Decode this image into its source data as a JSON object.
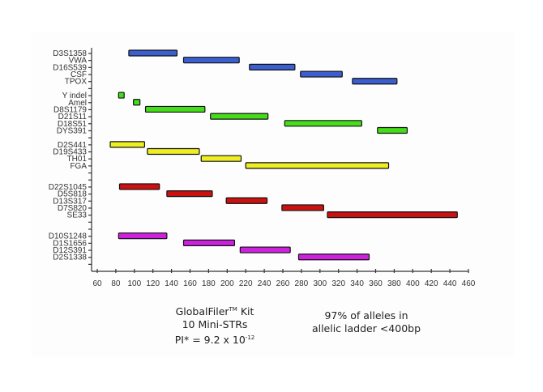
{
  "chart_data": {
    "type": "bar",
    "orientation": "horizontal-range",
    "xlim": [
      60,
      460
    ],
    "xticks": [
      60,
      80,
      100,
      120,
      140,
      160,
      180,
      200,
      220,
      240,
      260,
      280,
      300,
      320,
      340,
      360,
      380,
      400,
      420,
      440,
      460
    ],
    "grid": false,
    "colors": {
      "blue": "#3b5fd0",
      "green": "#44dd1a",
      "yellow": "#eeee22",
      "red": "#cc1111",
      "magenta": "#cc22dd"
    },
    "loci": [
      {
        "name": "D3S1358",
        "row": 0,
        "start": 94,
        "end": 146,
        "color": "blue"
      },
      {
        "name": "VWA",
        "row": 1,
        "start": 153,
        "end": 213,
        "color": "blue"
      },
      {
        "name": "D16S539",
        "row": 2,
        "start": 224,
        "end": 273,
        "color": "blue"
      },
      {
        "name": "CSF",
        "row": 3,
        "start": 279,
        "end": 324,
        "color": "blue"
      },
      {
        "name": "TPOX",
        "row": 4,
        "start": 335,
        "end": 383,
        "color": "blue"
      },
      {
        "name": "Y indel",
        "row": 6,
        "start": 83,
        "end": 89,
        "color": "green"
      },
      {
        "name": "Amel",
        "row": 7,
        "start": 99,
        "end": 106,
        "color": "green"
      },
      {
        "name": "D8S1179",
        "row": 8,
        "start": 112,
        "end": 176,
        "color": "green"
      },
      {
        "name": "D21S11",
        "row": 9,
        "start": 182,
        "end": 244,
        "color": "green"
      },
      {
        "name": "D18S51",
        "row": 10,
        "start": 262,
        "end": 345,
        "color": "green"
      },
      {
        "name": "DYS391",
        "row": 11,
        "start": 362,
        "end": 394,
        "color": "green"
      },
      {
        "name": "D2S441",
        "row": 13,
        "start": 74,
        "end": 111,
        "color": "yellow"
      },
      {
        "name": "D19S433",
        "row": 14,
        "start": 114,
        "end": 170,
        "color": "yellow"
      },
      {
        "name": "TH01",
        "row": 15,
        "start": 172,
        "end": 215,
        "color": "yellow"
      },
      {
        "name": "FGA",
        "row": 16,
        "start": 220,
        "end": 374,
        "color": "yellow"
      },
      {
        "name": "D22S1045",
        "row": 19,
        "start": 84,
        "end": 127,
        "color": "red"
      },
      {
        "name": "D5S818",
        "row": 20,
        "start": 135,
        "end": 184,
        "color": "red"
      },
      {
        "name": "D13S317",
        "row": 21,
        "start": 199,
        "end": 243,
        "color": "red"
      },
      {
        "name": "D7S820",
        "row": 22,
        "start": 259,
        "end": 304,
        "color": "red"
      },
      {
        "name": "SE33",
        "row": 23,
        "start": 308,
        "end": 448,
        "color": "red"
      },
      {
        "name": "D10S1248",
        "row": 26,
        "start": 83,
        "end": 135,
        "color": "magenta"
      },
      {
        "name": "D1S1656",
        "row": 27,
        "start": 153,
        "end": 208,
        "color": "magenta"
      },
      {
        "name": "D12S391",
        "row": 28,
        "start": 214,
        "end": 268,
        "color": "magenta"
      },
      {
        "name": "D2S1338",
        "row": 29,
        "start": 277,
        "end": 353,
        "color": "magenta"
      }
    ]
  },
  "notes": {
    "kit_line1": "GlobalFiler",
    "kit_tm": "TM",
    "kit_line1_suffix": " Kit",
    "kit_line2": "10 Mini-STRs",
    "kit_line3": "PI* =  9.2 x 10",
    "kit_exponent": "-12",
    "alleles_line1": "97% of alleles in",
    "alleles_line2": "allelic ladder <400bp"
  }
}
